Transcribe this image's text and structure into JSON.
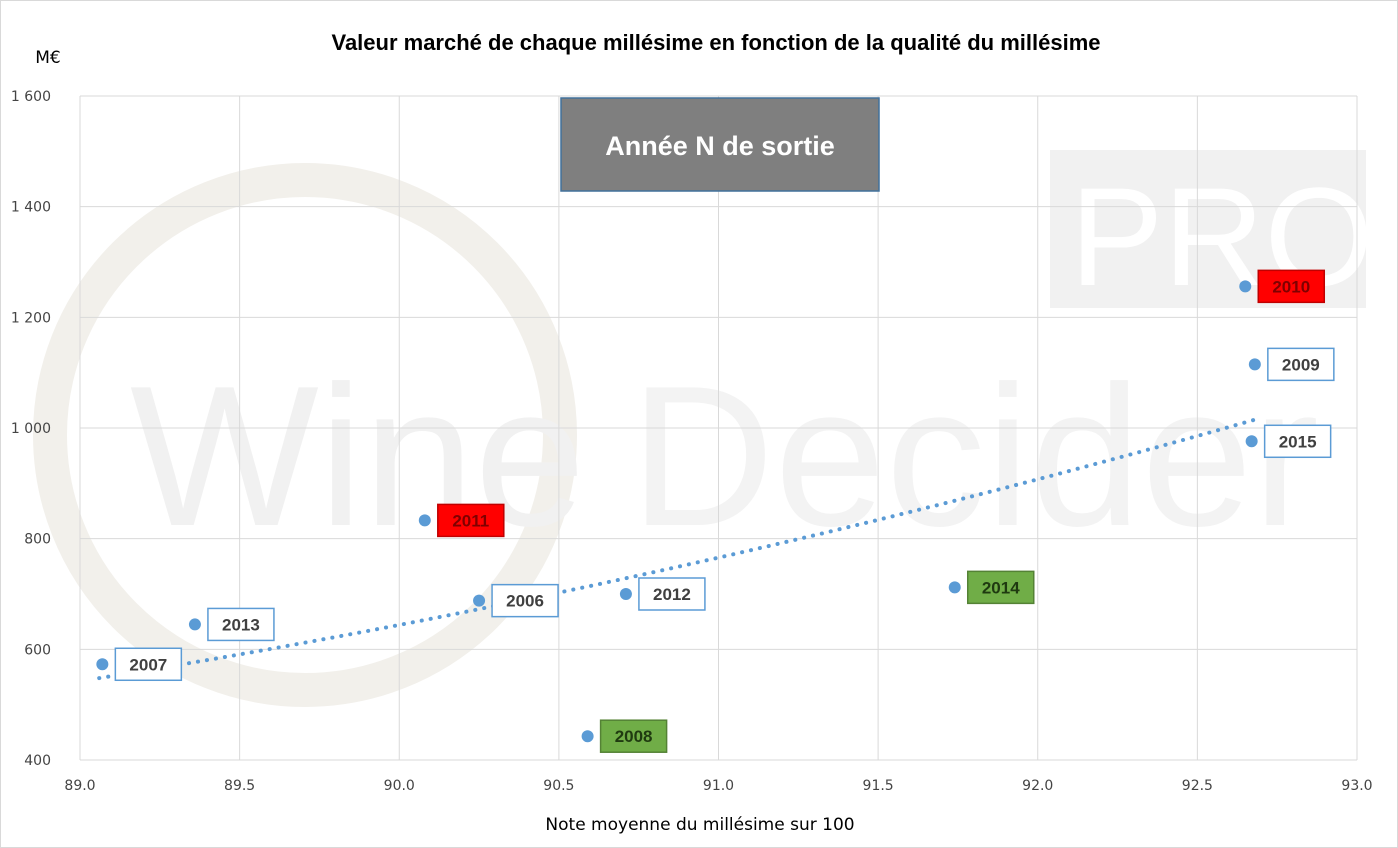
{
  "chart_data": {
    "type": "scatter",
    "title": "Valeur marché de chaque millésime en fonction de la qualité du millésime",
    "xlabel": "Note moyenne du millésime sur 100",
    "ylabel": "M€",
    "xlim": [
      89.0,
      93.0
    ],
    "ylim": [
      400,
      1600
    ],
    "x_ticks": [
      "89.0",
      "89.5",
      "90.0",
      "90.5",
      "91.0",
      "91.5",
      "92.0",
      "92.5",
      "93.0"
    ],
    "y_ticks": [
      "400",
      "600",
      "800",
      "1 000",
      "1 200",
      "1 400",
      "1 600"
    ],
    "grid": true,
    "annotation": "Année N de sortie",
    "trendline": {
      "style": "dotted",
      "kind": "linear-ish",
      "from": [
        89.06,
        548
      ],
      "to": [
        92.68,
        1015
      ]
    },
    "points": [
      {
        "label": "2007",
        "x": 89.07,
        "y": 573,
        "label_style": "outlined"
      },
      {
        "label": "2013",
        "x": 89.36,
        "y": 645,
        "label_style": "outlined"
      },
      {
        "label": "2011",
        "x": 90.08,
        "y": 833,
        "label_style": "red"
      },
      {
        "label": "2006",
        "x": 90.25,
        "y": 688,
        "label_style": "outlined"
      },
      {
        "label": "2008",
        "x": 90.59,
        "y": 443,
        "label_style": "green"
      },
      {
        "label": "2012",
        "x": 90.71,
        "y": 700,
        "label_style": "outlined"
      },
      {
        "label": "2014",
        "x": 91.74,
        "y": 712,
        "label_style": "green"
      },
      {
        "label": "2010",
        "x": 92.65,
        "y": 1256,
        "label_style": "red"
      },
      {
        "label": "2009",
        "x": 92.68,
        "y": 1115,
        "label_style": "outlined"
      },
      {
        "label": "2015",
        "x": 92.67,
        "y": 976,
        "label_style": "outlined"
      }
    ]
  },
  "watermark": {
    "brand": "WineDecider",
    "badge": "PRO"
  },
  "colors": {
    "marker": "#5b9bd5",
    "trend": "#5b9bd5",
    "grid": "#d9d9d9",
    "annotation_bg": "#7f7f7f",
    "annotation_border": "#41719c",
    "label_red": "#ff0000",
    "label_green": "#70ad47",
    "label_border": "#5b9bd5"
  }
}
